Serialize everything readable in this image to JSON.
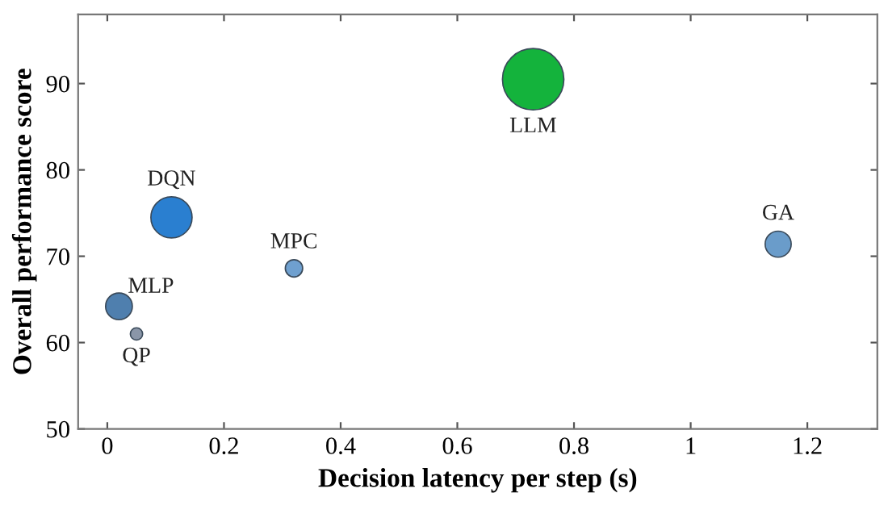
{
  "chart_data": {
    "type": "bubble",
    "xlabel": "Decision latency per step (s)",
    "ylabel": "Overall performance score",
    "x": [
      0.73,
      0.11,
      0.32,
      0.02,
      0.05,
      1.15
    ],
    "values": [
      90.5,
      74.5,
      68.6,
      64.2,
      61.0,
      71.4
    ],
    "sizes": [
      1,
      0.45,
      0.08,
      0.19,
      0.04,
      0.18
    ],
    "colors": [
      "#14b33c",
      "#2a7fd0",
      "#6fa0cf",
      "#4f7fae",
      "#8a96a8",
      "#6a9cca"
    ],
    "annotations": [
      {
        "text": "LLM",
        "x": 0.73,
        "y": 90.5
      },
      {
        "text": "DQN",
        "x": 0.11,
        "y": 74.5
      },
      {
        "text": "MPC",
        "x": 0.32,
        "y": 68.6
      },
      {
        "text": "MLP",
        "x": 0.02,
        "y": 64.2
      },
      {
        "text": "QP",
        "x": 0.05,
        "y": 61.0
      },
      {
        "text": "GA",
        "x": 1.15,
        "y": 71.4
      }
    ],
    "xlim": [
      -0.05,
      1.32
    ],
    "ylim": [
      50,
      98
    ],
    "xticks": [
      0,
      0.2,
      0.4,
      0.6,
      0.8,
      1,
      1.2
    ],
    "yticks": [
      50,
      60,
      70,
      80,
      90
    ],
    "grid": false,
    "legend": false
  }
}
